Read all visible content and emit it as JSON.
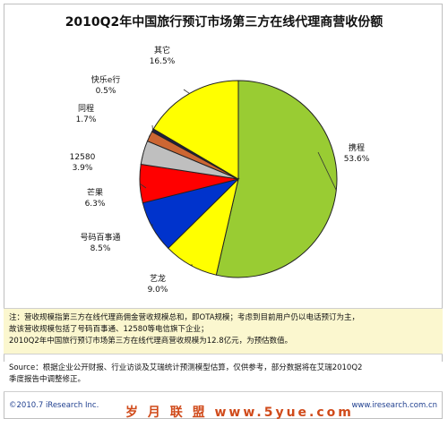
{
  "chart_data": {
    "type": "pie",
    "title": "2010Q2年中国旅行预订市场第三方在线代理商营收份额",
    "slices": [
      {
        "label": "携程",
        "value": 53.6,
        "display": "53.6%",
        "color": "#99cc33"
      },
      {
        "label": "艺龙",
        "value": 9.0,
        "display": "9.0%",
        "color": "#ffff00"
      },
      {
        "label": "号码百事通",
        "value": 8.5,
        "display": "8.5%",
        "color": "#0033cc"
      },
      {
        "label": "芒果",
        "value": 6.3,
        "display": "6.3%",
        "color": "#ff0000"
      },
      {
        "label": "12580",
        "value": 3.9,
        "display": "3.9%",
        "color": "#bfbfbf"
      },
      {
        "label": "同程",
        "value": 1.7,
        "display": "1.7%",
        "color": "#cc6633"
      },
      {
        "label": "快乐e行",
        "value": 0.5,
        "display": "0.5%",
        "color": "#1f1f3f"
      },
      {
        "label": "其它",
        "value": 16.5,
        "display": "16.5%",
        "color": "#ffff00"
      }
    ]
  },
  "notes": [
    "注：营收规模指第三方在线代理商佣金营收规模总和，即OTA规模；考虑到目前用户仍以电话预订为主，",
    "故该营收规模包括了号码百事通、12580等电信旗下企业；",
    "2010Q2年中国旅行预订市场第三方在线代理商营收规模为12.8亿元，为预估数值。"
  ],
  "source": [
    "Source：根据企业公开财报、行业访谈及艾瑞统计预测模型估算，仅供参考，部分数据将在艾瑞2010Q2",
    "季度报告中调整修正。"
  ],
  "footer": {
    "copyright": "©2010.7 iResearch Inc.",
    "url": "www.iresearch.com.cn"
  },
  "watermark": "岁 月 联 盟   www.5yue.com"
}
